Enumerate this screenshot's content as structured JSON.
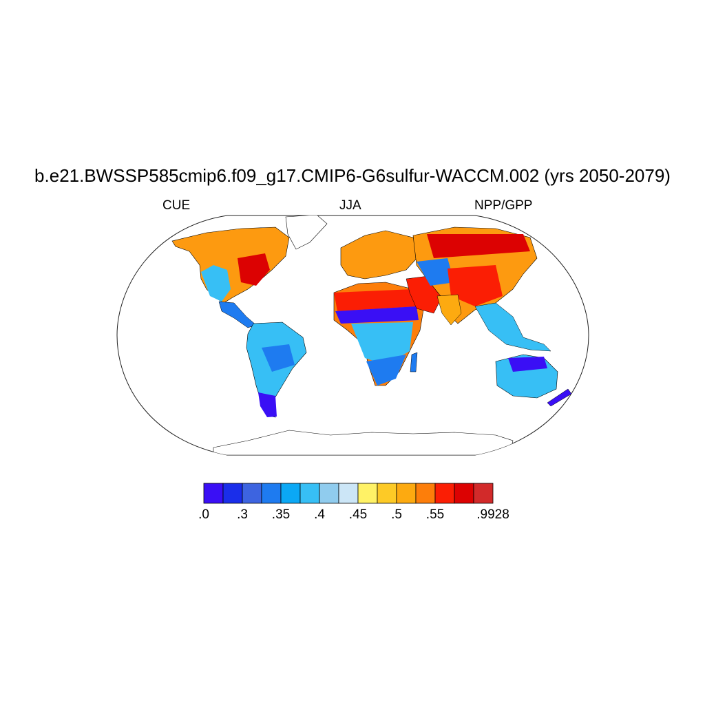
{
  "title": "b.e21.BWSSP585cmip6.f09_g17.CMIP6-G6sulfur-WACCM.002 (yrs 2050-2079)",
  "subtitle_left": "CUE",
  "subtitle_center": "JJA",
  "subtitle_right": "NPP/GPP",
  "projection": "Robinson",
  "colorbar": {
    "colors": [
      "#3a0ff5",
      "#1a2eea",
      "#3d64e0",
      "#1e7bf0",
      "#0ba8f5",
      "#37bff5",
      "#90ccee",
      "#cce6f7",
      "#fff266",
      "#fdca26",
      "#fdaa10",
      "#fd7e0a",
      "#fb1e04",
      "#dc0202",
      "#d22a2a"
    ],
    "labels": [
      ".0",
      ".3",
      ".35",
      ".4",
      ".45",
      ".5",
      ".55",
      ".9928"
    ],
    "label_positions": [
      0,
      2,
      4,
      6,
      8,
      10,
      12,
      15
    ]
  }
}
